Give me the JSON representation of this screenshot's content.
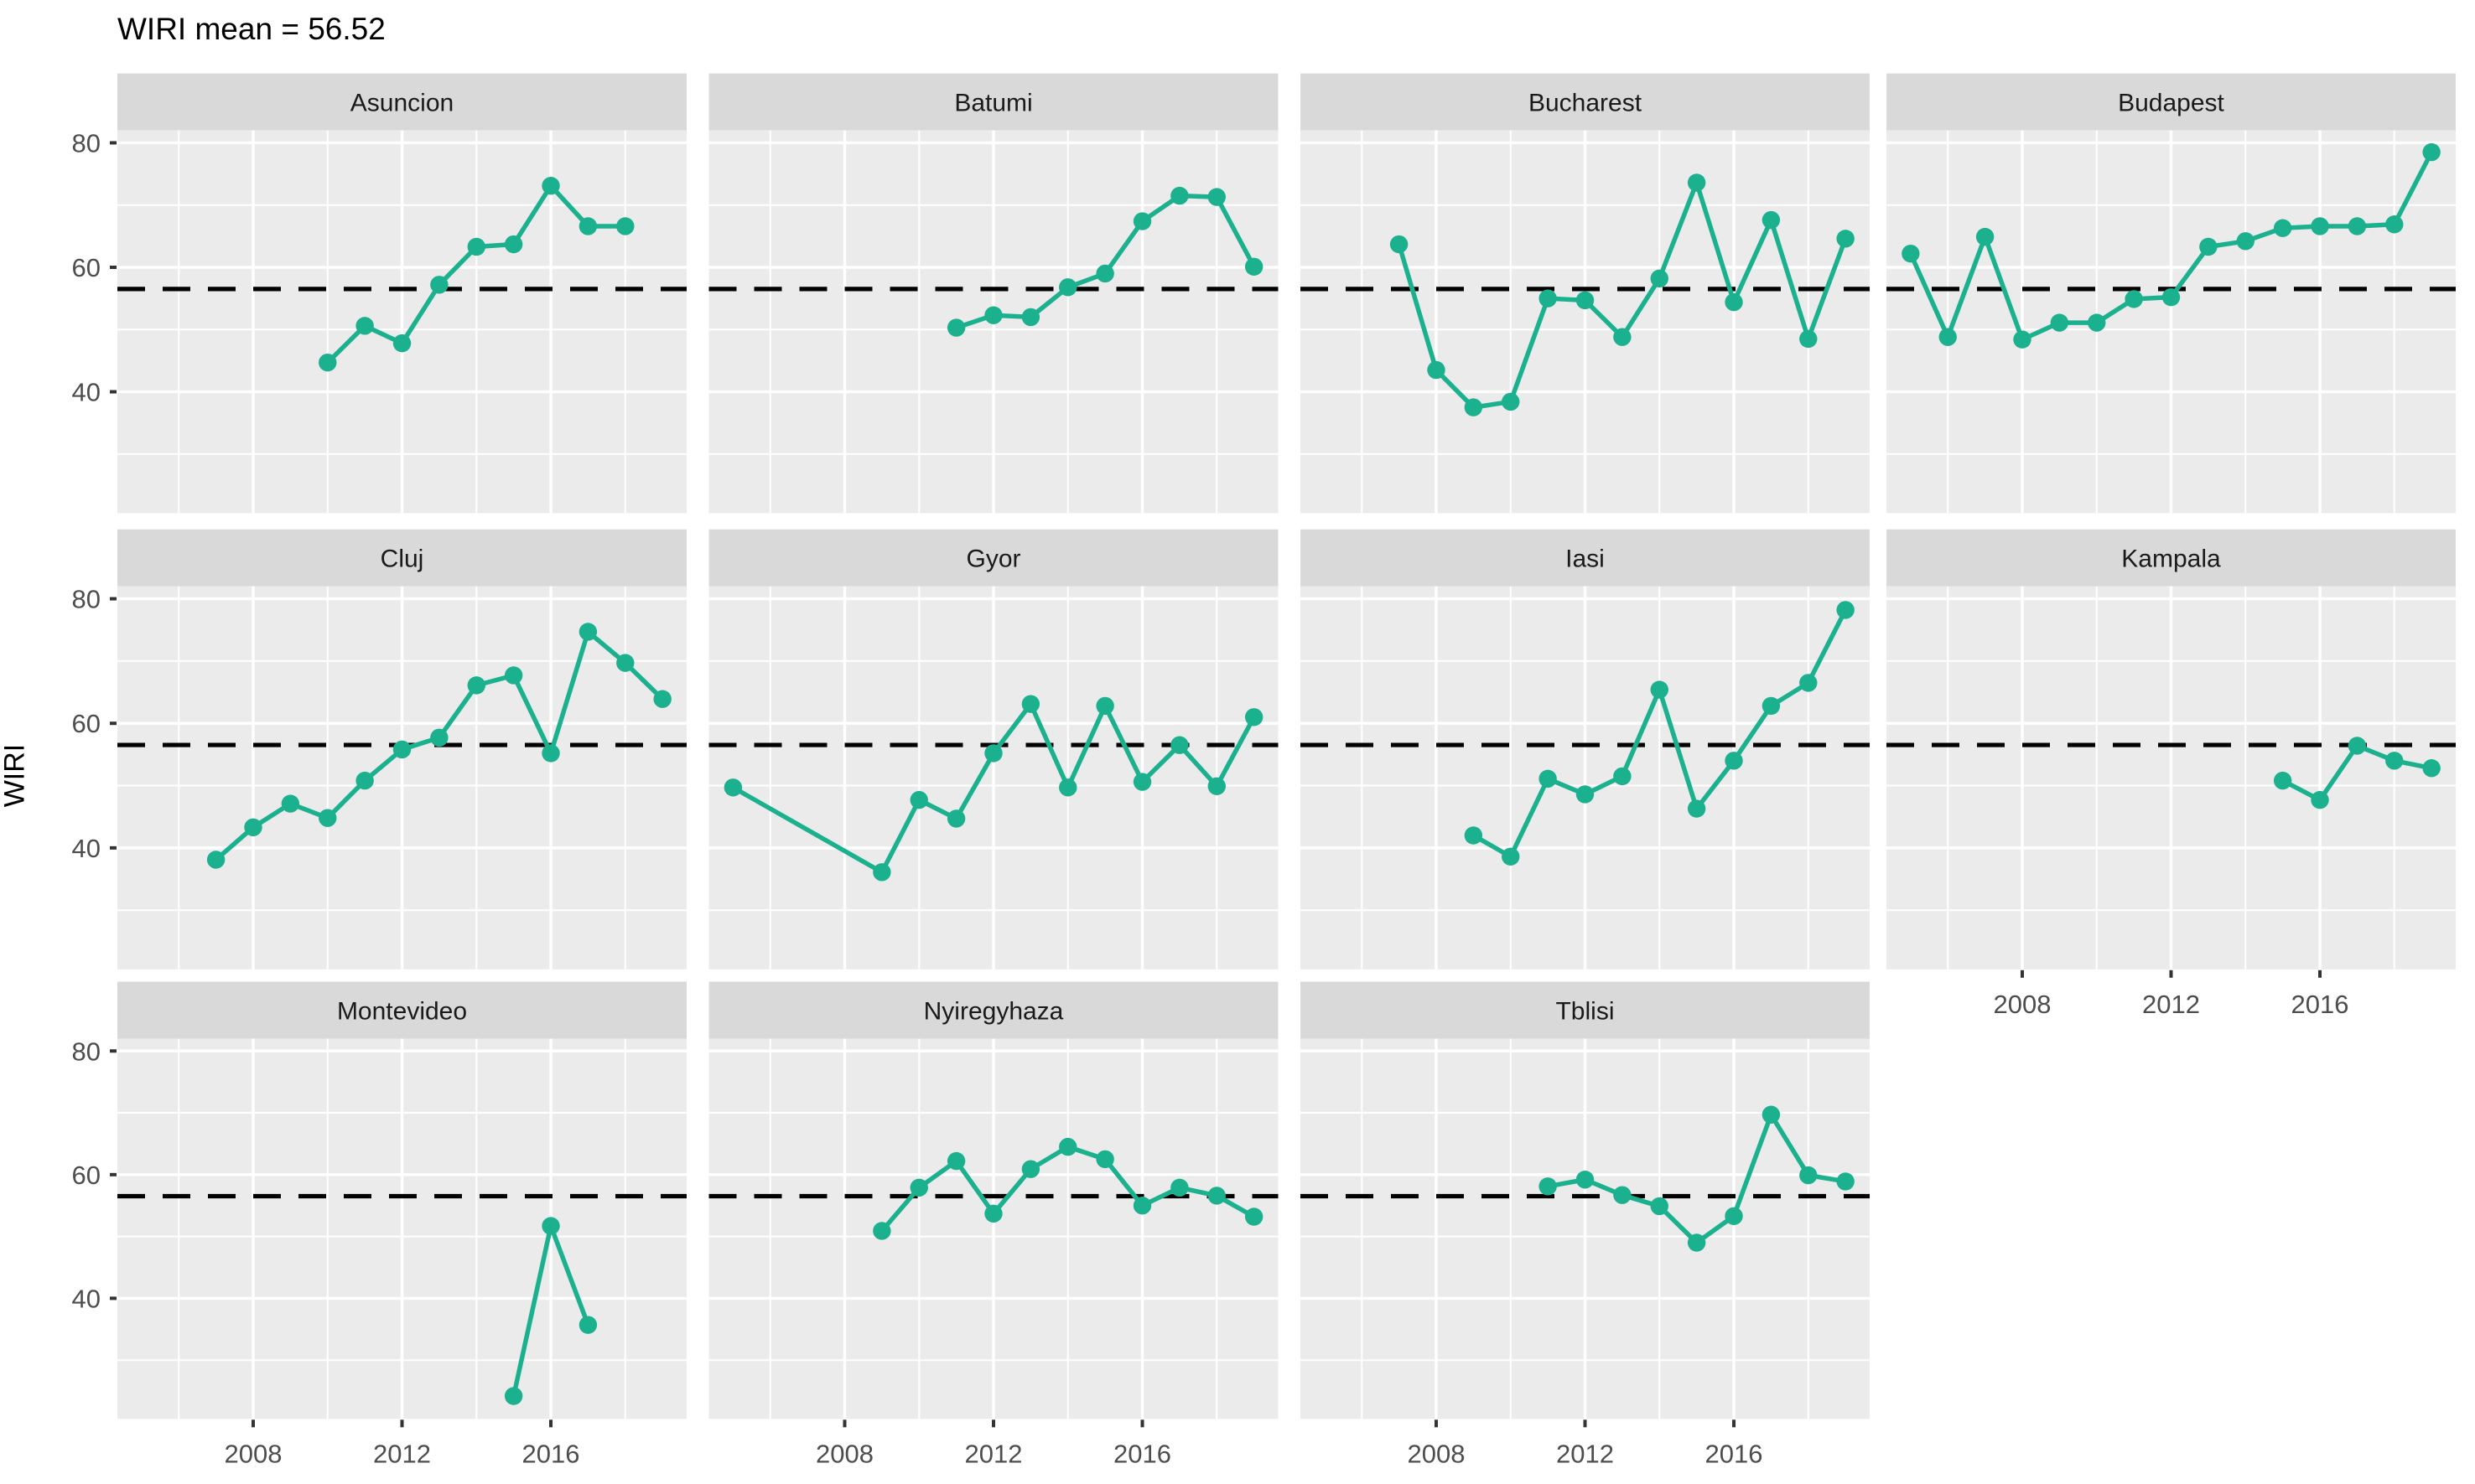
{
  "title": "WIRI mean = 56.52",
  "ylabel": "WIRI",
  "chart_data": {
    "type": "line",
    "title": "WIRI mean = 56.52",
    "xlabel": "",
    "ylabel": "WIRI",
    "mean_line": 56.52,
    "x_ticks": [
      2008,
      2012,
      2016
    ],
    "y_ticks": [
      40,
      60,
      80
    ],
    "x_minor_gridlines": [
      2006,
      2010,
      2014,
      2018
    ],
    "y_minor_gridlines": [
      30,
      50,
      70
    ],
    "xlim": [
      2004.35,
      2019.65
    ],
    "ylim": [
      20.5,
      82
    ],
    "grid": true,
    "legend": false,
    "facets": [
      {
        "name": "Asuncion",
        "years": [
          2010,
          2011,
          2012,
          2013,
          2014,
          2015,
          2016,
          2017,
          2018
        ],
        "values": [
          44.7,
          50.6,
          47.8,
          57.2,
          63.3,
          63.7,
          73.1,
          66.6,
          66.6
        ]
      },
      {
        "name": "Batumi",
        "years": [
          2011,
          2012,
          2013,
          2014,
          2015,
          2016,
          2017,
          2018,
          2019
        ],
        "values": [
          50.3,
          52.3,
          52.0,
          56.8,
          59.0,
          67.4,
          71.5,
          71.3,
          60.1
        ]
      },
      {
        "name": "Bucharest",
        "years": [
          2007,
          2008,
          2009,
          2010,
          2011,
          2012,
          2013,
          2014,
          2015,
          2016,
          2017,
          2018,
          2019
        ],
        "values": [
          63.7,
          43.5,
          37.5,
          38.4,
          55.0,
          54.7,
          48.8,
          58.2,
          73.6,
          54.4,
          67.6,
          48.5,
          64.6
        ]
      },
      {
        "name": "Budapest",
        "years": [
          2005,
          2006,
          2007,
          2008,
          2009,
          2010,
          2011,
          2012,
          2013,
          2014,
          2015,
          2016,
          2017,
          2018,
          2019
        ],
        "values": [
          62.2,
          48.8,
          64.9,
          48.4,
          51.1,
          51.1,
          54.9,
          55.2,
          63.3,
          64.2,
          66.3,
          66.6,
          66.6,
          66.9,
          78.5
        ]
      },
      {
        "name": "Cluj",
        "years": [
          2007,
          2008,
          2009,
          2010,
          2011,
          2012,
          2013,
          2014,
          2015,
          2016,
          2017,
          2018,
          2019
        ],
        "values": [
          38.1,
          43.3,
          47.1,
          44.8,
          50.8,
          55.8,
          57.7,
          66.1,
          67.7,
          55.2,
          74.7,
          69.7,
          63.9
        ]
      },
      {
        "name": "Gyor",
        "years": [
          2005,
          2009,
          2010,
          2011,
          2012,
          2013,
          2014,
          2015,
          2016,
          2017,
          2018,
          2019
        ],
        "values": [
          49.7,
          36.1,
          47.7,
          44.7,
          55.2,
          63.1,
          49.7,
          62.8,
          50.6,
          56.5,
          49.9,
          61.0
        ]
      },
      {
        "name": "Iasi",
        "years": [
          2009,
          2010,
          2011,
          2012,
          2013,
          2014,
          2015,
          2016,
          2017,
          2018,
          2019
        ],
        "values": [
          42.0,
          38.6,
          51.1,
          48.6,
          51.5,
          65.4,
          46.3,
          54.0,
          62.8,
          66.5,
          78.2
        ]
      },
      {
        "name": "Kampala",
        "years": [
          2015,
          2016,
          2017,
          2018,
          2019
        ],
        "values": [
          50.8,
          47.7,
          56.4,
          54.0,
          52.8
        ]
      },
      {
        "name": "Montevideo",
        "years": [
          2015,
          2016,
          2017
        ],
        "values": [
          24.2,
          51.7,
          35.7
        ]
      },
      {
        "name": "Nyiregyhaza",
        "years": [
          2009,
          2010,
          2011,
          2012,
          2013,
          2014,
          2015,
          2016,
          2017,
          2018,
          2019
        ],
        "values": [
          50.9,
          57.9,
          62.2,
          53.7,
          60.9,
          64.5,
          62.5,
          55.0,
          57.9,
          56.6,
          53.2
        ]
      },
      {
        "name": "Tblisi",
        "years": [
          2011,
          2012,
          2013,
          2014,
          2015,
          2016,
          2017,
          2018,
          2019
        ],
        "values": [
          58.1,
          59.2,
          56.7,
          54.9,
          49.0,
          53.3,
          69.7,
          59.9,
          58.9
        ]
      }
    ],
    "colors": {
      "series": "#1BB08E",
      "panel_background": "#EBEBEB",
      "strip_background": "#D9D9D9",
      "strip_text": "#1A1A1A",
      "gridline": "#FFFFFF",
      "axis_text": "#4D4D4D",
      "tick_mark": "#333333",
      "mean_line": "#000000",
      "page_background": "#FFFFFF"
    }
  }
}
